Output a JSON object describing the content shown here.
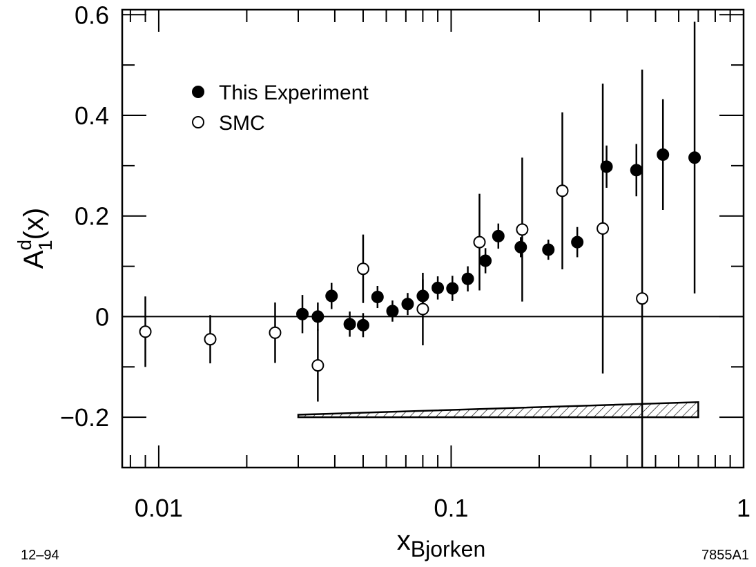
{
  "chart_data": {
    "type": "scatter",
    "x_scale": "log",
    "xlim": [
      0.0075,
      1
    ],
    "ylim": [
      -0.3,
      0.61
    ],
    "x_ticks": [
      {
        "value": 0.01,
        "label": "0.01"
      },
      {
        "value": 0.1,
        "label": "0.1"
      },
      {
        "value": 1,
        "label": "1"
      }
    ],
    "y_ticks": [
      {
        "value": -0.2,
        "label": "−0.2"
      },
      {
        "value": 0,
        "label": "0"
      },
      {
        "value": 0.2,
        "label": "0.2"
      },
      {
        "value": 0.4,
        "label": "0.4"
      },
      {
        "value": 0.6,
        "label": "0.6"
      }
    ],
    "xlabel": {
      "main": "x",
      "sub": "Bjorken"
    },
    "ylabel": {
      "main": "A",
      "sup": "d",
      "sub": "1",
      "suffix": "(x)"
    },
    "zero_line": true,
    "grid": false,
    "legend_position": "top-left",
    "series": [
      {
        "name": "This Experiment",
        "marker": "filled-circle",
        "points": [
          {
            "x": 0.031,
            "y": 0.005,
            "err": 0.038
          },
          {
            "x": 0.035,
            "y": 0.0,
            "err": 0.028
          },
          {
            "x": 0.039,
            "y": 0.041,
            "err": 0.026
          },
          {
            "x": 0.045,
            "y": -0.015,
            "err": 0.025
          },
          {
            "x": 0.05,
            "y": -0.017,
            "err": 0.024
          },
          {
            "x": 0.056,
            "y": 0.039,
            "err": 0.022
          },
          {
            "x": 0.063,
            "y": 0.011,
            "err": 0.021
          },
          {
            "x": 0.071,
            "y": 0.025,
            "err": 0.022
          },
          {
            "x": 0.08,
            "y": 0.041,
            "err": 0.033
          },
          {
            "x": 0.09,
            "y": 0.057,
            "err": 0.023
          },
          {
            "x": 0.101,
            "y": 0.056,
            "err": 0.025
          },
          {
            "x": 0.114,
            "y": 0.075,
            "err": 0.025
          },
          {
            "x": 0.131,
            "y": 0.111,
            "err": 0.025
          },
          {
            "x": 0.145,
            "y": 0.16,
            "err": 0.025
          },
          {
            "x": 0.173,
            "y": 0.138,
            "err": 0.02
          },
          {
            "x": 0.215,
            "y": 0.133,
            "err": 0.02
          },
          {
            "x": 0.27,
            "y": 0.148,
            "err": 0.03
          },
          {
            "x": 0.34,
            "y": 0.298,
            "err": 0.042
          },
          {
            "x": 0.43,
            "y": 0.291,
            "err": 0.052
          },
          {
            "x": 0.53,
            "y": 0.322,
            "err": 0.11
          },
          {
            "x": 0.68,
            "y": 0.316,
            "err": 0.27
          }
        ]
      },
      {
        "name": "SMC",
        "marker": "open-circle",
        "points": [
          {
            "x": 0.009,
            "y": -0.03,
            "err": 0.07
          },
          {
            "x": 0.015,
            "y": -0.045,
            "err": 0.048
          },
          {
            "x": 0.025,
            "y": -0.032,
            "err": 0.06
          },
          {
            "x": 0.035,
            "y": -0.097,
            "err": 0.072
          },
          {
            "x": 0.05,
            "y": 0.095,
            "err": 0.068
          },
          {
            "x": 0.08,
            "y": 0.015,
            "err": 0.072
          },
          {
            "x": 0.125,
            "y": 0.148,
            "err": 0.096
          },
          {
            "x": 0.175,
            "y": 0.173,
            "err": 0.143
          },
          {
            "x": 0.24,
            "y": 0.25,
            "err": 0.156
          },
          {
            "x": 0.33,
            "y": 0.175,
            "err": 0.288
          },
          {
            "x": 0.45,
            "y": 0.036,
            "err": 0.455
          }
        ]
      }
    ],
    "systematic_band": {
      "x": [
        0.03,
        0.7
      ],
      "lower": [
        -0.2,
        -0.2
      ],
      "upper": [
        -0.195,
        -0.17
      ],
      "fill": "hatched"
    }
  },
  "labels": {
    "bottom_left": "12–94",
    "bottom_right": "7855A1"
  },
  "colors": {
    "ink": "#000000",
    "background": "#ffffff"
  }
}
